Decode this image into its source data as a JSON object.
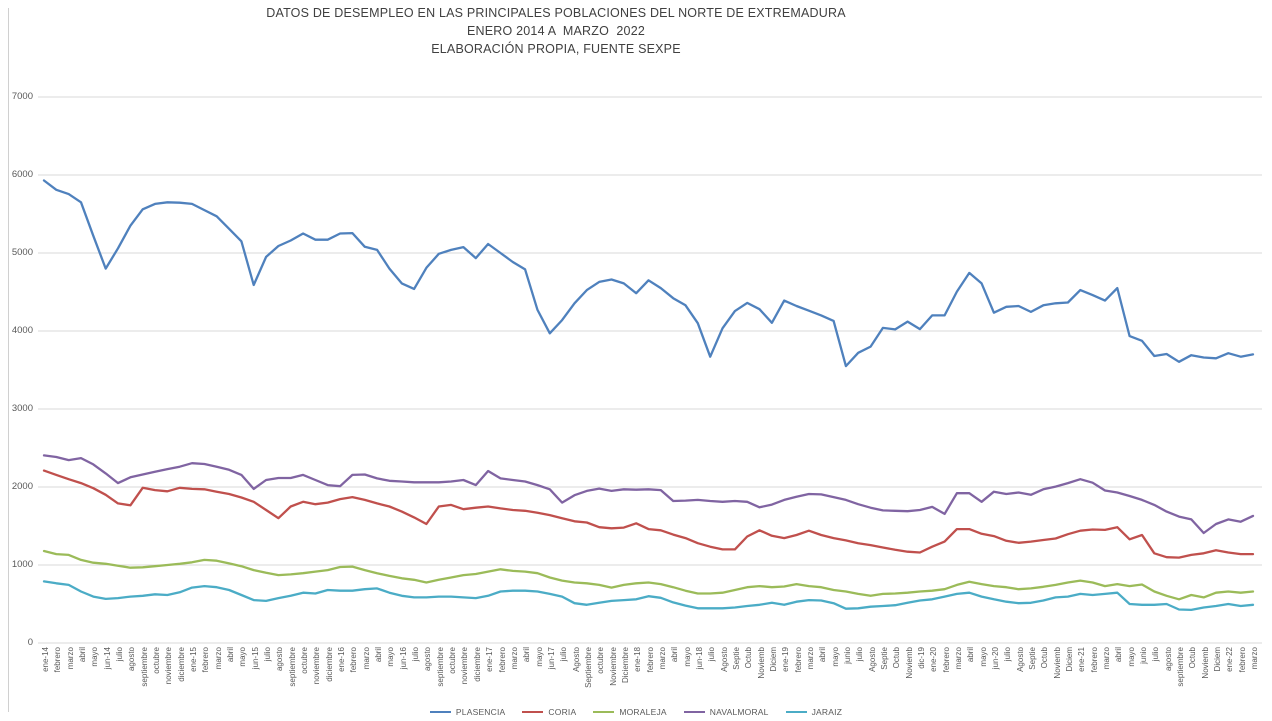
{
  "title": {
    "line1": "DATOS DE DESEMPLEO EN LAS PRINCIPALES POBLACIONES DEL NORTE DE EXTREMADURA",
    "line2": "ENERO 2014 A  MARZO  2022",
    "line3": "ELABORACIÓN PROPIA, FUENTE SEXPE"
  },
  "colors": {
    "grid": "#d9d9d9",
    "axis_text": "#595959",
    "title_text": "#404040",
    "chart_border": "#d0d0d0",
    "background": "#ffffff"
  },
  "chart_data": {
    "type": "line",
    "title": "DATOS DE DESEMPLEO EN LAS PRINCIPALES POBLACIONES DEL NORTE DE EXTREMADURA ENERO 2014 A MARZO 2022, ELABORACIÓN PROPIA, FUENTE SEXPE",
    "xlabel": "",
    "ylabel": "",
    "ylim": [
      0,
      7000
    ],
    "y_ticks": [
      0,
      1000,
      2000,
      3000,
      4000,
      5000,
      6000,
      7000
    ],
    "grid": "horizontal",
    "legend_position": "bottom",
    "x_labels": [
      "ene-14",
      "febrero",
      "marzo",
      "abril",
      "mayo",
      "jun-14",
      "julio",
      "agosto",
      "septiembre",
      "octubre",
      "noviembre",
      "diciembre",
      "ene-15",
      "febrero",
      "marzo",
      "abril",
      "mayo",
      "jun-15",
      "julio",
      "agosto",
      "septiembre",
      "octubre",
      "noviembre",
      "diciembre",
      "ene-16",
      "febrero",
      "marzo",
      "abril",
      "mayo",
      "jun-16",
      "julio",
      "agosto",
      "septiembre",
      "octubre",
      "noviembre",
      "diciembre",
      "ene-17",
      "febrero",
      "marzo",
      "abril",
      "mayo",
      "jun-17",
      "julio",
      "Agosto",
      "Septiembre",
      "octubre",
      "Noviembre",
      "Diciembre",
      "ene-18",
      "febrero",
      "marzo",
      "abril",
      "mayo",
      "jun-18",
      "julio",
      "Agosto",
      "Septie",
      "Octub",
      "Noviemb",
      "Diciem",
      "ene-19",
      "febrero",
      "marzo",
      "abril",
      "mayo",
      "junio",
      "julio",
      "Agosto",
      "Septie",
      "Octub",
      "Noviemb",
      "dic-19",
      "ene-20",
      "febrero",
      "marzo",
      "abril",
      "mayo",
      "jun-20",
      "julio",
      "Agosto",
      "Septie",
      "Octub",
      "Noviemb",
      "Diciem",
      "ene-21",
      "febrero",
      "marzo",
      "abril",
      "mayo",
      "junio",
      "julio",
      "agosto",
      "septiembre",
      "Octub",
      "Noviemb",
      "Diciem",
      "ene-22",
      "febrero",
      "marzo"
    ],
    "series": [
      {
        "name": "PLASENCIA",
        "color": "#4F81BD",
        "values": [
          5930,
          5810,
          5755,
          5650,
          5220,
          4800,
          5060,
          5350,
          5560,
          5630,
          5650,
          5645,
          5630,
          5550,
          5470,
          5310,
          5150,
          4590,
          4950,
          5090,
          5160,
          5250,
          5170,
          5170,
          5250,
          5255,
          5080,
          5040,
          4800,
          4610,
          4540,
          4810,
          4990,
          5040,
          5075,
          4935,
          5115,
          5000,
          4885,
          4790,
          4270,
          3970,
          4140,
          4355,
          4525,
          4630,
          4660,
          4610,
          4485,
          4650,
          4550,
          4420,
          4330,
          4100,
          3670,
          4035,
          4255,
          4360,
          4280,
          4105,
          4390,
          4320,
          4260,
          4200,
          4130,
          3550,
          3720,
          3800,
          4040,
          4020,
          4120,
          4025,
          4200,
          4200,
          4505,
          4745,
          4610,
          4235,
          4310,
          4320,
          4245,
          4330,
          4355,
          4365,
          4525,
          4460,
          4390,
          4550,
          3935,
          3875,
          3680,
          3705,
          3605,
          3690,
          3660,
          3650,
          3715,
          3670,
          3700
        ]
      },
      {
        "name": "CORIA",
        "color": "#C0504D",
        "values": [
          2210,
          2155,
          2100,
          2050,
          1985,
          1900,
          1790,
          1765,
          1990,
          1960,
          1945,
          1990,
          1975,
          1970,
          1940,
          1910,
          1865,
          1810,
          1705,
          1600,
          1750,
          1810,
          1780,
          1800,
          1845,
          1870,
          1835,
          1790,
          1750,
          1685,
          1610,
          1525,
          1750,
          1770,
          1715,
          1735,
          1750,
          1725,
          1705,
          1695,
          1670,
          1640,
          1600,
          1560,
          1545,
          1485,
          1470,
          1480,
          1535,
          1460,
          1445,
          1390,
          1345,
          1280,
          1235,
          1200,
          1200,
          1365,
          1445,
          1375,
          1345,
          1385,
          1440,
          1385,
          1345,
          1315,
          1280,
          1255,
          1225,
          1195,
          1170,
          1160,
          1235,
          1300,
          1460,
          1460,
          1400,
          1370,
          1310,
          1285,
          1300,
          1320,
          1340,
          1395,
          1440,
          1455,
          1450,
          1485,
          1330,
          1385,
          1150,
          1100,
          1095,
          1130,
          1150,
          1190,
          1160,
          1140,
          1140
        ]
      },
      {
        "name": "MORALEJA",
        "color": "#9BBB59",
        "values": [
          1180,
          1140,
          1130,
          1065,
          1030,
          1015,
          990,
          965,
          970,
          985,
          1000,
          1015,
          1035,
          1065,
          1055,
          1020,
          985,
          935,
          900,
          870,
          880,
          895,
          915,
          935,
          975,
          980,
          935,
          895,
          860,
          830,
          810,
          775,
          810,
          840,
          870,
          885,
          915,
          945,
          925,
          915,
          895,
          840,
          800,
          775,
          765,
          745,
          710,
          745,
          765,
          775,
          755,
          715,
          670,
          635,
          635,
          645,
          680,
          715,
          730,
          715,
          725,
          755,
          730,
          715,
          680,
          660,
          630,
          605,
          630,
          635,
          645,
          660,
          670,
          690,
          745,
          785,
          755,
          730,
          715,
          690,
          700,
          720,
          745,
          775,
          800,
          775,
          730,
          755,
          730,
          750,
          660,
          605,
          560,
          615,
          585,
          645,
          660,
          645,
          660
        ]
      },
      {
        "name": "NAVALMORAL",
        "color": "#8064A2",
        "values": [
          2405,
          2385,
          2345,
          2370,
          2290,
          2175,
          2050,
          2125,
          2160,
          2195,
          2230,
          2260,
          2305,
          2295,
          2260,
          2220,
          2155,
          1975,
          2090,
          2115,
          2115,
          2155,
          2090,
          2025,
          2010,
          2155,
          2160,
          2110,
          2080,
          2070,
          2060,
          2060,
          2060,
          2070,
          2090,
          2025,
          2205,
          2110,
          2090,
          2070,
          2025,
          1970,
          1800,
          1895,
          1950,
          1980,
          1950,
          1970,
          1965,
          1970,
          1960,
          1820,
          1825,
          1835,
          1820,
          1810,
          1820,
          1810,
          1740,
          1775,
          1835,
          1875,
          1910,
          1905,
          1870,
          1835,
          1780,
          1735,
          1700,
          1695,
          1690,
          1705,
          1745,
          1655,
          1920,
          1920,
          1810,
          1940,
          1910,
          1930,
          1900,
          1970,
          2005,
          2050,
          2100,
          2055,
          1955,
          1930,
          1885,
          1835,
          1770,
          1685,
          1620,
          1585,
          1410,
          1525,
          1585,
          1555,
          1630
        ]
      },
      {
        "name": "JARAIZ",
        "color": "#4BACC6",
        "values": [
          790,
          765,
          745,
          660,
          595,
          565,
          575,
          595,
          605,
          625,
          615,
          650,
          710,
          730,
          715,
          680,
          615,
          550,
          540,
          575,
          605,
          645,
          635,
          680,
          670,
          670,
          690,
          700,
          645,
          605,
          585,
          585,
          595,
          595,
          585,
          575,
          605,
          660,
          670,
          670,
          660,
          630,
          595,
          510,
          490,
          515,
          540,
          550,
          560,
          600,
          580,
          520,
          480,
          445,
          445,
          445,
          455,
          475,
          490,
          515,
          490,
          530,
          550,
          545,
          510,
          440,
          445,
          465,
          475,
          485,
          515,
          545,
          560,
          595,
          630,
          645,
          595,
          560,
          530,
          510,
          515,
          545,
          585,
          595,
          630,
          615,
          630,
          645,
          500,
          490,
          490,
          500,
          430,
          425,
          455,
          475,
          500,
          475,
          490
        ]
      }
    ]
  }
}
